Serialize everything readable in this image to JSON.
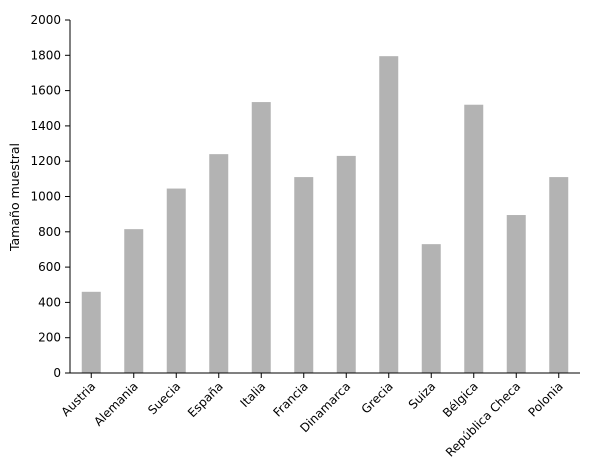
{
  "chart_data": {
    "type": "bar",
    "title": "",
    "xlabel": "",
    "ylabel": "Tamaño muestral",
    "ylim": [
      0,
      2000
    ],
    "yticks": [
      0,
      200,
      400,
      600,
      800,
      1000,
      1200,
      1400,
      1600,
      1800,
      2000
    ],
    "categories": [
      "Austria",
      "Alemania",
      "Suecia",
      "España",
      "Italia",
      "Francia",
      "Dinamarca",
      "Grecia",
      "Suiza",
      "Bélgica",
      "República Checa",
      "Polonia"
    ],
    "values": [
      460,
      815,
      1045,
      1240,
      1535,
      1110,
      1230,
      1795,
      730,
      1520,
      895,
      1110
    ],
    "bar_color": "#b3b3b3",
    "grid": false,
    "legend": "none"
  }
}
